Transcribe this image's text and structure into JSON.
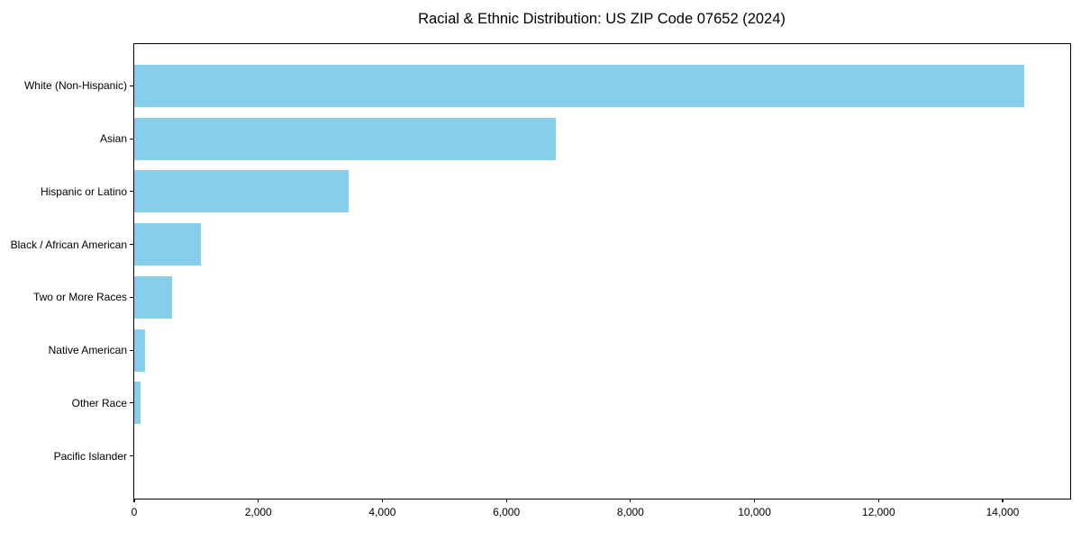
{
  "title": "Racial & Ethnic Distribution: US ZIP Code 07652 (2024)",
  "chart_data": {
    "type": "bar",
    "orientation": "horizontal",
    "title": "Racial & Ethnic Distribution: US ZIP Code 07652 (2024)",
    "categories": [
      "White (Non-Hispanic)",
      "Asian",
      "Hispanic or Latino",
      "Black / African American",
      "Two or More Races",
      "Native American",
      "Other Race",
      "Pacific Islander"
    ],
    "values": [
      14350,
      6800,
      3455,
      1075,
      610,
      170,
      95,
      0
    ],
    "xlabel": "",
    "ylabel": "",
    "xlim": [
      0,
      15075
    ],
    "x_ticks": [
      0,
      2000,
      4000,
      6000,
      8000,
      10000,
      12000,
      14000
    ],
    "x_tick_labels": [
      "0",
      "2,000",
      "4,000",
      "6,000",
      "8,000",
      "10,000",
      "12,000",
      "14,000"
    ],
    "bar_color": "#87CEEB",
    "axis_color": "#000000",
    "background": "#FFFFFF",
    "grid": false,
    "legend": null
  }
}
